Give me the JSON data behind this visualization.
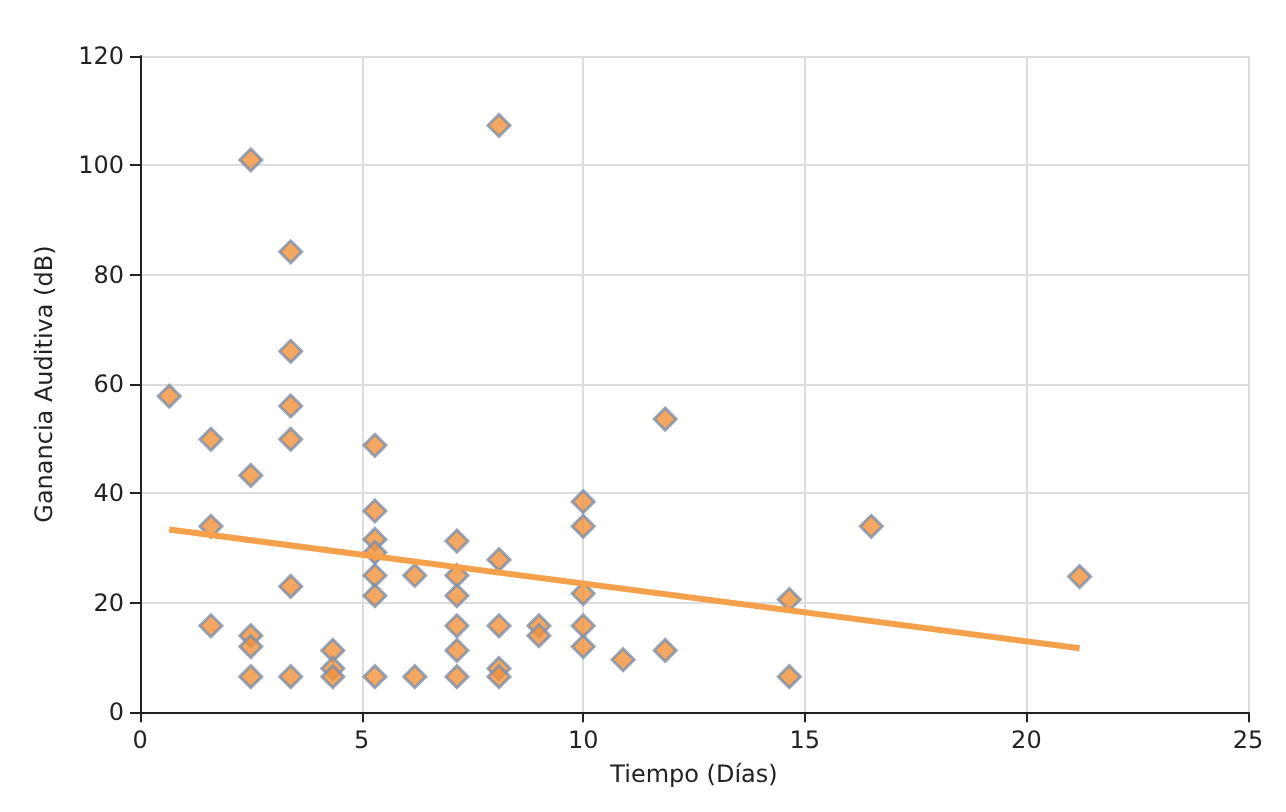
{
  "chart_data": {
    "type": "scatter",
    "xlabel": "Tiempo (Días)",
    "ylabel": "Ganancia Auditiva (dB)",
    "xlim": [
      0,
      25
    ],
    "xticks": [
      0,
      5,
      10,
      15,
      20,
      25
    ],
    "ylim": [
      0,
      120
    ],
    "yticks": [
      0,
      20,
      40,
      60,
      80,
      100,
      120
    ],
    "grid": true,
    "marker": "diamond",
    "series": [
      {
        "color": "#f0913a",
        "x": [
          0.66,
          1.6,
          1.6,
          1.6,
          2.5,
          2.5,
          2.5,
          2.5,
          2.5,
          3.4,
          3.4,
          3.4,
          3.4,
          3.4,
          3.4,
          4.35,
          4.35,
          4.35,
          5.3,
          5.3,
          5.3,
          5.3,
          5.3,
          5.3,
          5.3,
          6.2,
          6.2,
          7.15,
          7.15,
          7.15,
          7.15,
          7.15,
          7.15,
          8.1,
          8.1,
          8.1,
          8.1,
          8.1,
          9.0,
          9.0,
          10,
          10,
          10,
          10,
          10,
          10.9,
          11.85,
          11.85,
          14.65,
          14.65,
          16.5,
          21.2
        ],
        "values": [
          57.8,
          49.9,
          34,
          15.8,
          101,
          43.3,
          14,
          12,
          6.5,
          84.2,
          66,
          56,
          49.9,
          23,
          6.5,
          11.3,
          8,
          6.5,
          48.8,
          36.8,
          31.6,
          29.2,
          25,
          21.3,
          6.5,
          25,
          6.5,
          31.3,
          25,
          21.3,
          15.8,
          11.3,
          6.5,
          107.3,
          27.9,
          15.8,
          8,
          6.5,
          15.8,
          14,
          38.5,
          34,
          21.7,
          15.8,
          12,
          9.6,
          53.6,
          11.3,
          20.6,
          6.5,
          34,
          24.8
        ]
      },
      {
        "type": "line",
        "color": "#f5a04a",
        "marker": "none",
        "line_style": "solid",
        "x": [
          0.66,
          21.2
        ],
        "values": [
          33.4,
          11.7
        ]
      }
    ]
  }
}
